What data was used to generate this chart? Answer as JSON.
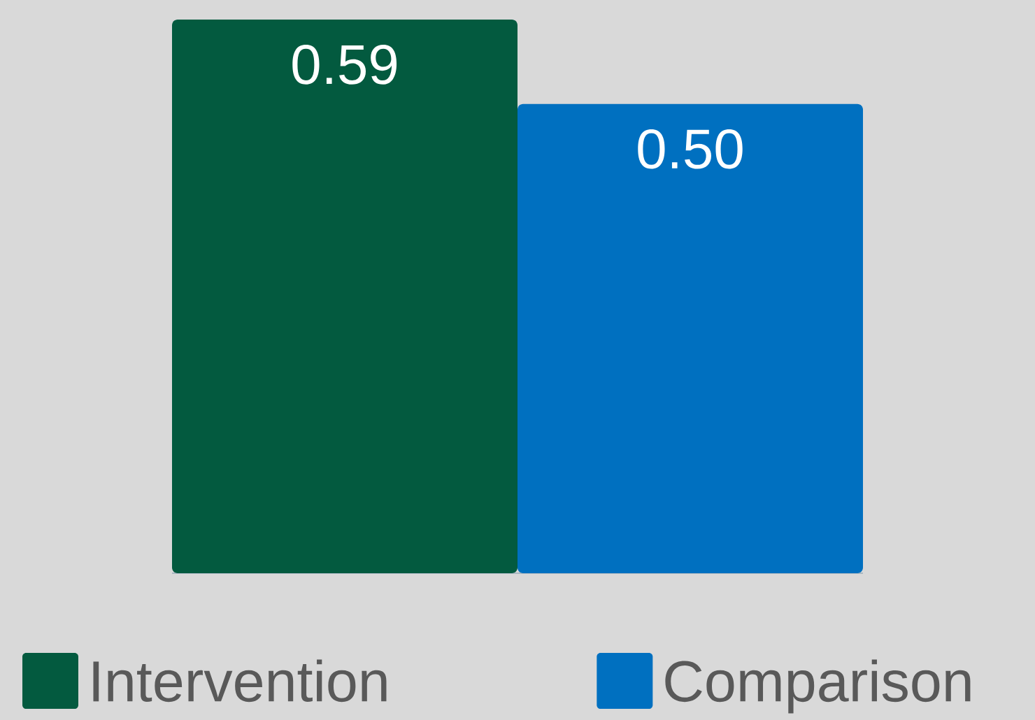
{
  "chart_data": {
    "type": "bar",
    "categories": [
      null
    ],
    "series": [
      {
        "name": "Intervention",
        "color": "#035a3f",
        "values": [
          0.59
        ],
        "value_labels": [
          "0.59"
        ]
      },
      {
        "name": "Comparison",
        "color": "#0070c0",
        "values": [
          0.5
        ],
        "value_labels": [
          "0.50"
        ]
      }
    ],
    "legend": "bottom"
  }
}
